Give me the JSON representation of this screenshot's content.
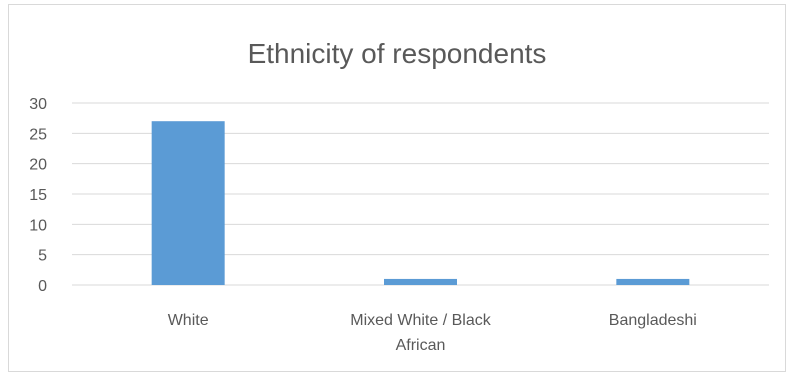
{
  "chart_data": {
    "type": "bar",
    "title": "Ethnicity of respondents",
    "xlabel": "",
    "ylabel": "",
    "categories": [
      "White",
      "Mixed White / Black African",
      "Bangladeshi"
    ],
    "category_lines": [
      [
        "White"
      ],
      [
        "Mixed White / Black",
        "African"
      ],
      [
        "Bangladeshi"
      ]
    ],
    "values": [
      27,
      1,
      1
    ],
    "ylim": [
      0,
      30
    ],
    "yticks": [
      "0",
      "5",
      "10",
      "15",
      "20",
      "25",
      "30"
    ],
    "grid": true,
    "legend": "none",
    "colors": {
      "bar": "#5b9bd5",
      "grid": "#d9d9d9",
      "text": "#595959"
    }
  }
}
